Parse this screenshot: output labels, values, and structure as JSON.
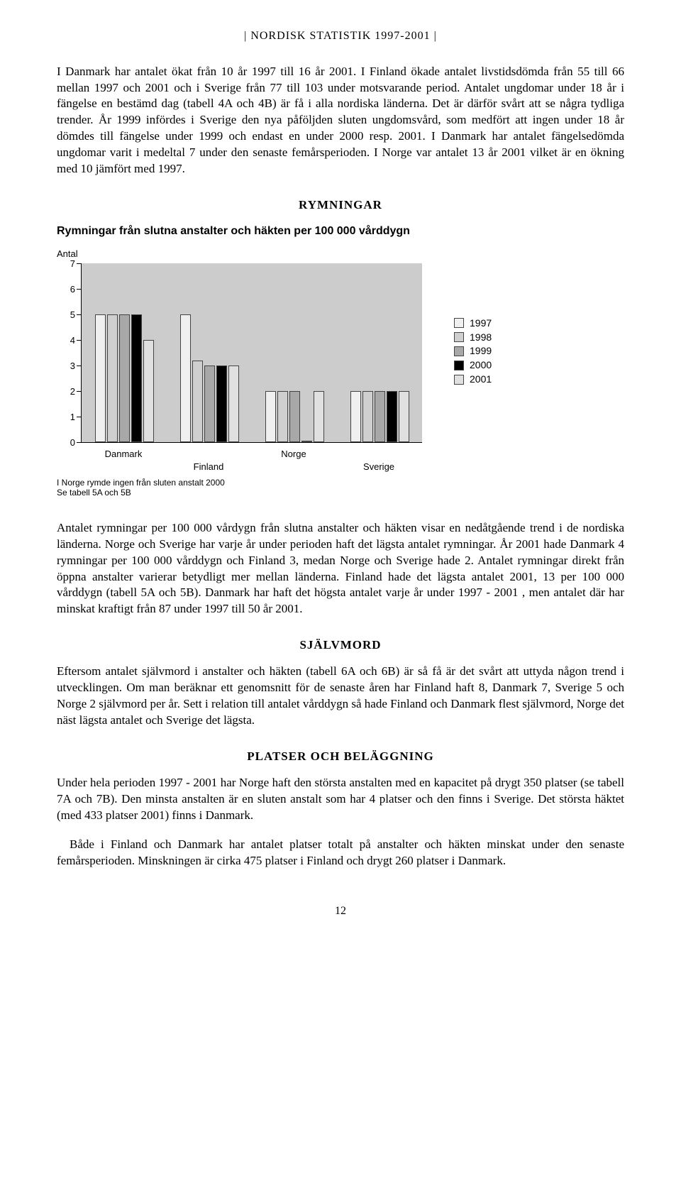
{
  "header": "| NORDISK STATISTIK 1997-2001 |",
  "para_intro": "I Danmark har antalet ökat från 10 år 1997 till 16 år 2001. I Finland ökade antalet livstidsdömda från 55 till 66 mellan 1997 och 2001 och i Sverige från 77 till 103 under motsvarande period. Antalet ungdomar under 18 år i fängelse en bestämd dag (tabell 4A och 4B) är få i alla nordiska länderna. Det är därför svårt att se några tydliga trender. År 1999 infördes i Sverige den nya påföljden sluten ungdomsvård, som medfört att ingen under 18 år dömdes till fängelse under 1999 och endast en under 2000 resp. 2001. I Danmark har antalet fängelsedömda ungdomar varit i medeltal 7 under den senaste femårsperioden. I Norge var antalet 13 år 2001 vilket är en ökning med 10 jämfört med 1997.",
  "sections": {
    "rymningar": {
      "title": "RYMNINGAR",
      "subhead": "Rymningar från slutna anstalter och häkten per 100 000 vårddygn",
      "body": "Antalet rymningar per 100 000 vårdygn från slutna anstalter och häkten visar en nedåtgående trend i de nordiska länderna. Norge och Sverige har varje år under perioden haft det lägsta antalet rymningar. År 2001 hade Danmark 4 rymningar per 100 000 vårddygn och Finland 3, medan Norge och Sverige hade 2. Antalet rymningar direkt från öppna anstalter varierar betydligt mer mellan länderna. Finland hade det lägsta antalet 2001, 13 per 100 000 vårddygn (tabell 5A och 5B). Danmark har haft det högsta antalet varje år under 1997 - 2001 , men antalet där har minskat kraftigt från 87 under 1997 till 50 år 2001."
    },
    "sjalvmord": {
      "title": "SJÄLVMORD",
      "body": "Eftersom antalet självmord i anstalter och häkten (tabell 6A och 6B) är så få är det svårt att uttyda någon trend i utvecklingen. Om man beräknar ett genomsnitt för de senaste åren har Finland haft 8, Danmark 7, Sverige 5 och Norge 2 självmord per år. Sett i relation till antalet vårddygn så hade Finland och Danmark flest självmord, Norge det näst lägsta antalet och Sverige det lägsta."
    },
    "platser": {
      "title": "PLATSER OCH BELÄGGNING",
      "body1": "Under hela perioden 1997 - 2001 har Norge haft den största anstalten med en kapacitet på drygt 350 platser (se tabell 7A och 7B). Den minsta anstalten är en sluten anstalt som har 4 platser och den finns i Sverige. Det största häktet (med 433 platser 2001) finns i Danmark.",
      "body2": "Både i Finland och Danmark har antalet platser totalt på anstalter och häkten minskat under den senaste femårsperioden. Minskningen är cirka 475 platser i Finland och drygt 260 platser i Danmark."
    }
  },
  "chart": {
    "type": "grouped-bar",
    "y_title": "Antal",
    "ylim": [
      0,
      7
    ],
    "ytick_step": 1,
    "yticks": [
      0,
      1,
      2,
      3,
      4,
      5,
      6,
      7
    ],
    "background_color": "#cccccc",
    "axis_color": "#000000",
    "categories": [
      "Danmark",
      "Finland",
      "Norge",
      "Sverige"
    ],
    "category_offset": [
      "normal",
      "alt",
      "normal",
      "alt"
    ],
    "series": [
      {
        "label": "1997",
        "color": "#f0f0f0"
      },
      {
        "label": "1998",
        "color": "#cfcfcf"
      },
      {
        "label": "1999",
        "color": "#a8a8a8"
      },
      {
        "label": "2000",
        "color": "#000000"
      },
      {
        "label": "2001",
        "color": "#e0e0e0"
      }
    ],
    "data": {
      "Danmark": [
        5.0,
        5.0,
        5.0,
        5.0,
        4.0
      ],
      "Finland": [
        5.0,
        3.2,
        3.0,
        3.0,
        3.0
      ],
      "Norge": [
        2.0,
        2.0,
        2.0,
        0.0,
        2.0
      ],
      "Sverige": [
        2.0,
        2.0,
        2.0,
        2.0,
        2.0
      ]
    },
    "note_line1": "I Norge rymde ingen från sluten anstalt 2000",
    "note_line2": "Se tabell 5A och 5B"
  },
  "page_number": "12"
}
